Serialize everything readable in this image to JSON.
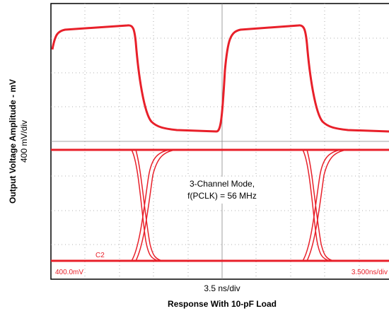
{
  "figure": {
    "y_axis_label": "Output Voltage Amplitude - mV",
    "y_axis_scale": "400 mV/div",
    "x_axis_scale": "3.5 ns/div",
    "caption": "Response With 10-pF Load",
    "annotation": [
      "3-Channel Mode,",
      "f(PCLK) = 56 MHz"
    ],
    "scope_channel_label": "C2",
    "scope_volts_readout": "400.0mV",
    "scope_time_readout": "3.500ns/div"
  }
}
